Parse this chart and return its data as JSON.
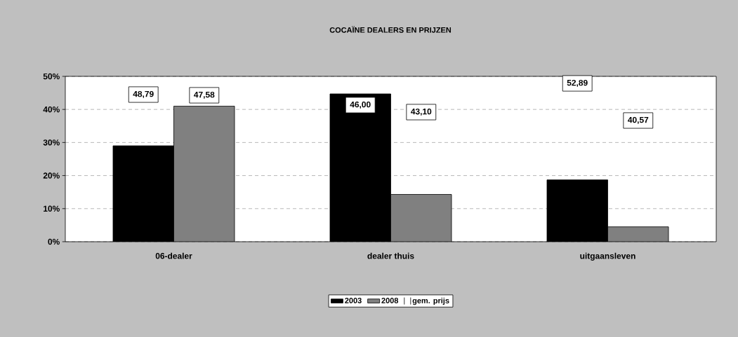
{
  "chart_data": {
    "type": "bar",
    "title": "COCAÏNE DEALERS EN PRIJZEN",
    "categories": [
      "06-dealer",
      "dealer thuis",
      "uitgaansleven"
    ],
    "series": [
      {
        "name": "2003",
        "color": "#000000",
        "values": [
          29,
          44.7,
          18.7
        ]
      },
      {
        "name": "2008",
        "color": "#808080",
        "values": [
          41,
          14.3,
          4.5
        ]
      },
      {
        "name": "gem. prijs",
        "type": "line",
        "color": "#000000",
        "values": [
          null,
          null,
          null
        ]
      }
    ],
    "ylim": [
      0,
      50
    ],
    "yticks": [
      {
        "value": 0,
        "label": "0%"
      },
      {
        "value": 10,
        "label": "10%"
      },
      {
        "value": 20,
        "label": "20%"
      },
      {
        "value": 30,
        "label": "30%"
      },
      {
        "value": 40,
        "label": "40%"
      },
      {
        "value": 50,
        "label": "50%"
      }
    ],
    "grid": "y",
    "legend": "bottom",
    "annotations": [
      "48,79",
      "47,58",
      "46,00",
      "43,10",
      "52,89",
      "40,57"
    ]
  }
}
